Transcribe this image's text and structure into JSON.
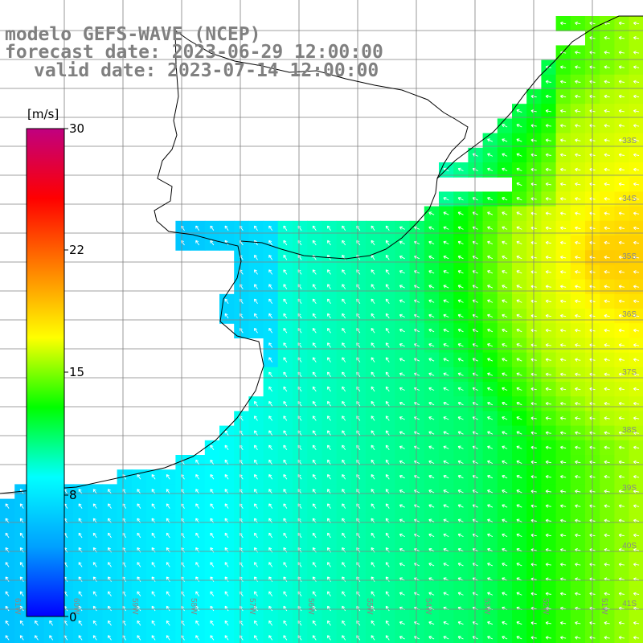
{
  "title": {
    "line1": "modelo GEFS-WAVE (NCEP)",
    "line2": "forecast date: 2023-06-29 12:00:00",
    "line3": "valid date: 2023-07-14 12:00:00"
  },
  "colorbar": {
    "unit": "[m/s]",
    "ticks": [
      {
        "label": "30",
        "value": 30
      },
      {
        "label": "22",
        "value": 22
      },
      {
        "label": "15",
        "value": 15
      },
      {
        "label": "8",
        "value": 8
      },
      {
        "label": "0",
        "value": 0
      }
    ],
    "colors": [
      "#0000ff",
      "#00a0ff",
      "#00ffff",
      "#00ff00",
      "#ffff00",
      "#ff8000",
      "#ff0000",
      "#c00080"
    ]
  },
  "map": {
    "lat_labels": [
      "33S",
      "34S",
      "35S",
      "36S",
      "37S",
      "38S",
      "39S",
      "40S",
      "41S"
    ],
    "lon_labels": [
      "61W",
      "60W",
      "59W",
      "58W",
      "57W",
      "56W",
      "55W",
      "54W",
      "53W",
      "52W",
      "51W"
    ],
    "colors": {
      "land": "#ffffff",
      "coast": "#000000",
      "grid": "#808080",
      "arrow": "#ffffff"
    }
  }
}
